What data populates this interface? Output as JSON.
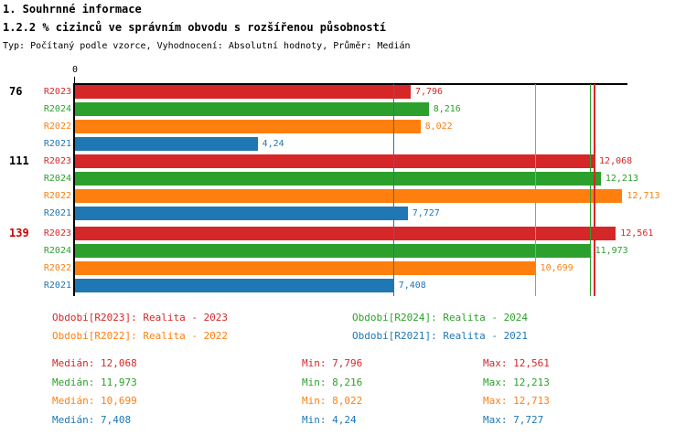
{
  "header": {
    "title": "1. Souhrnné informace",
    "subtitle": "1.2.2 % cizinců ve správním obvodu s rozšířenou působností",
    "meta": "Typ: Počítaný podle vzorce, Vyhodnocení: Absolutní hodnoty, Průměr: Medián"
  },
  "colors": {
    "r2023": "#d62728",
    "r2024": "#2ca02c",
    "r2022": "#ff7f0e",
    "r2021": "#1f77b4",
    "category_highlight": "#cc0000",
    "text": "#000000",
    "axis": "#000000"
  },
  "chart_data": {
    "type": "bar",
    "orientation": "horizontal",
    "x_axis": {
      "origin_label": "0",
      "min": 0,
      "max": 12.87,
      "grid": false
    },
    "categories": [
      {
        "label": "76",
        "highlighted": false
      },
      {
        "label": "111",
        "highlighted": false
      },
      {
        "label": "139",
        "highlighted": true
      }
    ],
    "series": [
      {
        "name": "R2023",
        "color_key": "r2023",
        "values": [
          7.796,
          12.068,
          12.561
        ],
        "value_labels": [
          "7,796",
          "12,068",
          "12,561"
        ],
        "median": 12.068
      },
      {
        "name": "R2024",
        "color_key": "r2024",
        "values": [
          8.216,
          12.213,
          11.973
        ],
        "value_labels": [
          "8,216",
          "12,213",
          "11,973"
        ],
        "median": 11.973
      },
      {
        "name": "R2022",
        "color_key": "r2022",
        "values": [
          8.022,
          12.713,
          10.699
        ],
        "value_labels": [
          "8,022",
          "12,713",
          "10,699"
        ],
        "median": 10.699
      },
      {
        "name": "R2021",
        "color_key": "r2021",
        "values": [
          4.24,
          7.727,
          7.408
        ],
        "value_labels": [
          "4,24",
          "7,727",
          "7,408"
        ],
        "median": 7.408
      }
    ],
    "median_lines": [
      {
        "color_key": "r2021",
        "value": 7.408
      },
      {
        "color_key": "r2022",
        "value": 10.699
      },
      {
        "color_key": "r2024",
        "value": 11.973
      },
      {
        "color_key": "r2023",
        "value": 12.068
      }
    ]
  },
  "legend": {
    "items": [
      {
        "text": "Období[R2023]: Realita - 2023",
        "color_key": "r2023"
      },
      {
        "text": "Období[R2024]: Realita - 2024",
        "color_key": "r2024"
      },
      {
        "text": "Období[R2022]: Realita - 2022",
        "color_key": "r2022"
      },
      {
        "text": "Období[R2021]: Realita - 2021",
        "color_key": "r2021"
      }
    ]
  },
  "stats": {
    "rows": [
      {
        "color_key": "r2023",
        "median": "Medián: 12,068",
        "min": "Min: 7,796",
        "max": "Max: 12,561"
      },
      {
        "color_key": "r2024",
        "median": "Medián: 11,973",
        "min": "Min: 8,216",
        "max": "Max: 12,213"
      },
      {
        "color_key": "r2022",
        "median": "Medián: 10,699",
        "min": "Min: 8,022",
        "max": "Max: 12,713"
      },
      {
        "color_key": "r2021",
        "median": "Medián: 7,408",
        "min": "Min: 4,24",
        "max": "Max: 7,727"
      }
    ]
  }
}
